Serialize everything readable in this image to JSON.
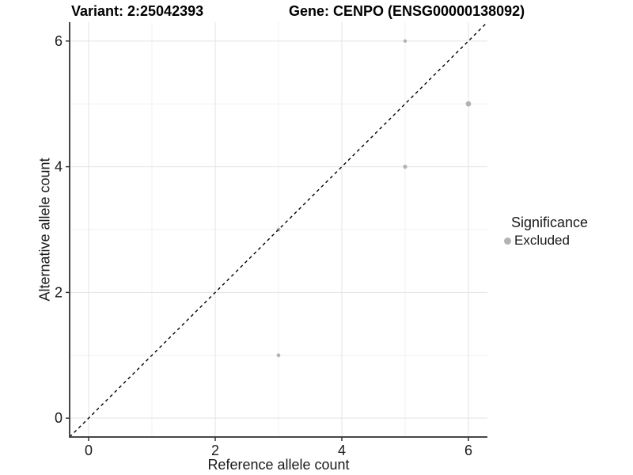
{
  "header": {
    "variant_title": "Variant: 2:25042393",
    "gene_title": "Gene: CENPO (ENSG00000138092)"
  },
  "axes": {
    "x": {
      "label": "Reference allele count"
    },
    "y": {
      "label": "Alternative allele count"
    }
  },
  "legend": {
    "title": "Significance",
    "items": [
      {
        "label": "Excluded",
        "color": "#b3b3b3"
      }
    ]
  },
  "colors": {
    "background": "#ffffff",
    "grid_major": "#e3e3e3",
    "grid_minor": "#f1f1f1",
    "axis_line": "#474747",
    "tick_mark": "#333333",
    "tick_label": "#1a1a1a",
    "point": "#b3b3b3",
    "reference_line": "#000000"
  },
  "chart_data": {
    "type": "scatter",
    "title": "Variant: 2:25042393 — Gene: CENPO (ENSG00000138092)",
    "xlabel": "Reference allele count",
    "ylabel": "Alternative allele count",
    "xlim": [
      -0.3,
      6.3
    ],
    "ylim": [
      -0.3,
      6.3
    ],
    "x_ticks": [
      0,
      2,
      4,
      6
    ],
    "y_ticks": [
      0,
      2,
      4,
      6
    ],
    "x_minor_gridlines": [
      1,
      3,
      5
    ],
    "y_minor_gridlines": [
      1,
      3,
      5
    ],
    "grid": true,
    "legend_position": "right",
    "series": [
      {
        "name": "Excluded",
        "color": "#b3b3b3",
        "points": [
          {
            "x": 3,
            "y": 1,
            "r": 2.4
          },
          {
            "x": 3,
            "y": 3,
            "r": 2.4
          },
          {
            "x": 5,
            "y": 4,
            "r": 2.6
          },
          {
            "x": 5,
            "y": 6,
            "r": 2.2
          },
          {
            "x": 6,
            "y": 5,
            "r": 3.4
          }
        ]
      }
    ],
    "reference_line": {
      "type": "identity",
      "slope": 1,
      "intercept": 0,
      "style": "dashed",
      "from": [
        -0.3,
        -0.3
      ],
      "to": [
        6.3,
        6.3
      ]
    }
  }
}
